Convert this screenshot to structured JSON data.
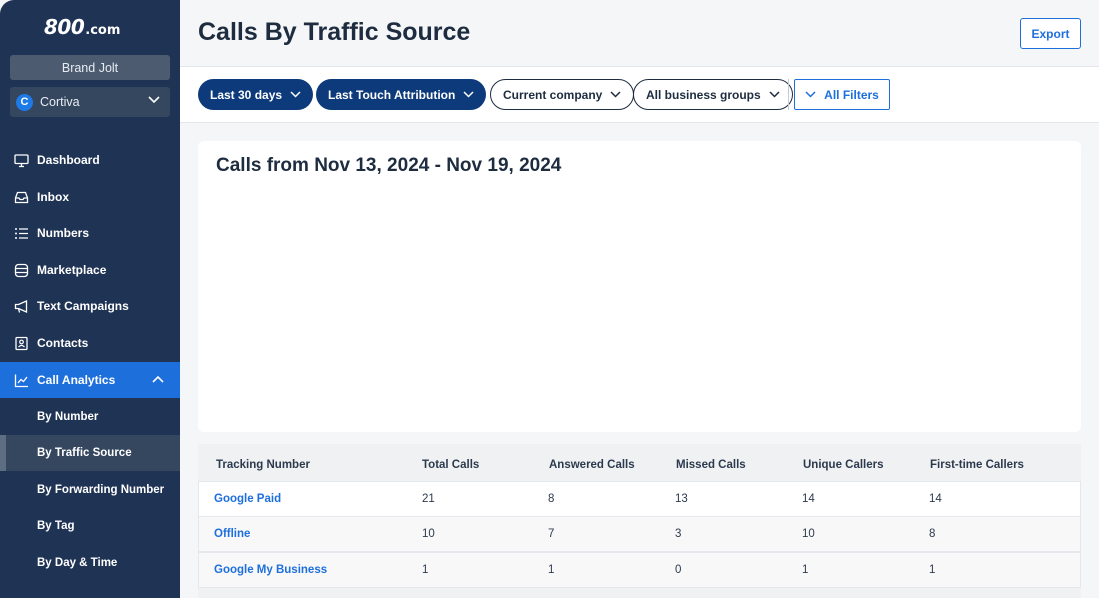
{
  "sidebar": {
    "logo_main": "800",
    "logo_suffix": ".com",
    "brand": "Brand Jolt",
    "company": {
      "initial": "C",
      "name": "Cortiva"
    },
    "nav": [
      {
        "label": "Dashboard",
        "icon": "monitor-icon"
      },
      {
        "label": "Inbox",
        "icon": "inbox-icon"
      },
      {
        "label": "Numbers",
        "icon": "list-icon"
      },
      {
        "label": "Marketplace",
        "icon": "database-icon"
      },
      {
        "label": "Text Campaigns",
        "icon": "megaphone-icon"
      },
      {
        "label": "Contacts",
        "icon": "contact-card-icon"
      },
      {
        "label": "Call Analytics",
        "icon": "line-chart-icon",
        "active": true
      }
    ],
    "sub_nav": [
      {
        "label": "By Number"
      },
      {
        "label": "By Traffic Source",
        "selected": true
      },
      {
        "label": "By Forwarding Number"
      },
      {
        "label": "By Tag"
      },
      {
        "label": "By Day & Time"
      }
    ]
  },
  "header": {
    "title": "Calls By Traffic Source",
    "export_label": "Export"
  },
  "filters": {
    "date_range": "Last 30 days",
    "attribution": "Last Touch Attribution",
    "company": "Current company",
    "business_groups": "All business groups",
    "all_filters": "All Filters"
  },
  "chart": {
    "title": "Calls from Nov 13, 2024 - Nov 19, 2024"
  },
  "table": {
    "columns": [
      "Tracking Number",
      "Total Calls",
      "Answered Calls",
      "Missed Calls",
      "Unique Callers",
      "First-time Callers"
    ],
    "rows": [
      [
        "Google Paid",
        "21",
        "8",
        "13",
        "14",
        "14"
      ],
      [
        "Offline",
        "10",
        "7",
        "3",
        "10",
        "8"
      ],
      [
        "Google My Business",
        "1",
        "1",
        "0",
        "1",
        "1"
      ]
    ]
  },
  "colors": {
    "sidebar_bg": "#1f3354",
    "active_nav": "#1d6fdc",
    "dark_pill": "#0d3a7a",
    "link": "#1d6fdc"
  }
}
